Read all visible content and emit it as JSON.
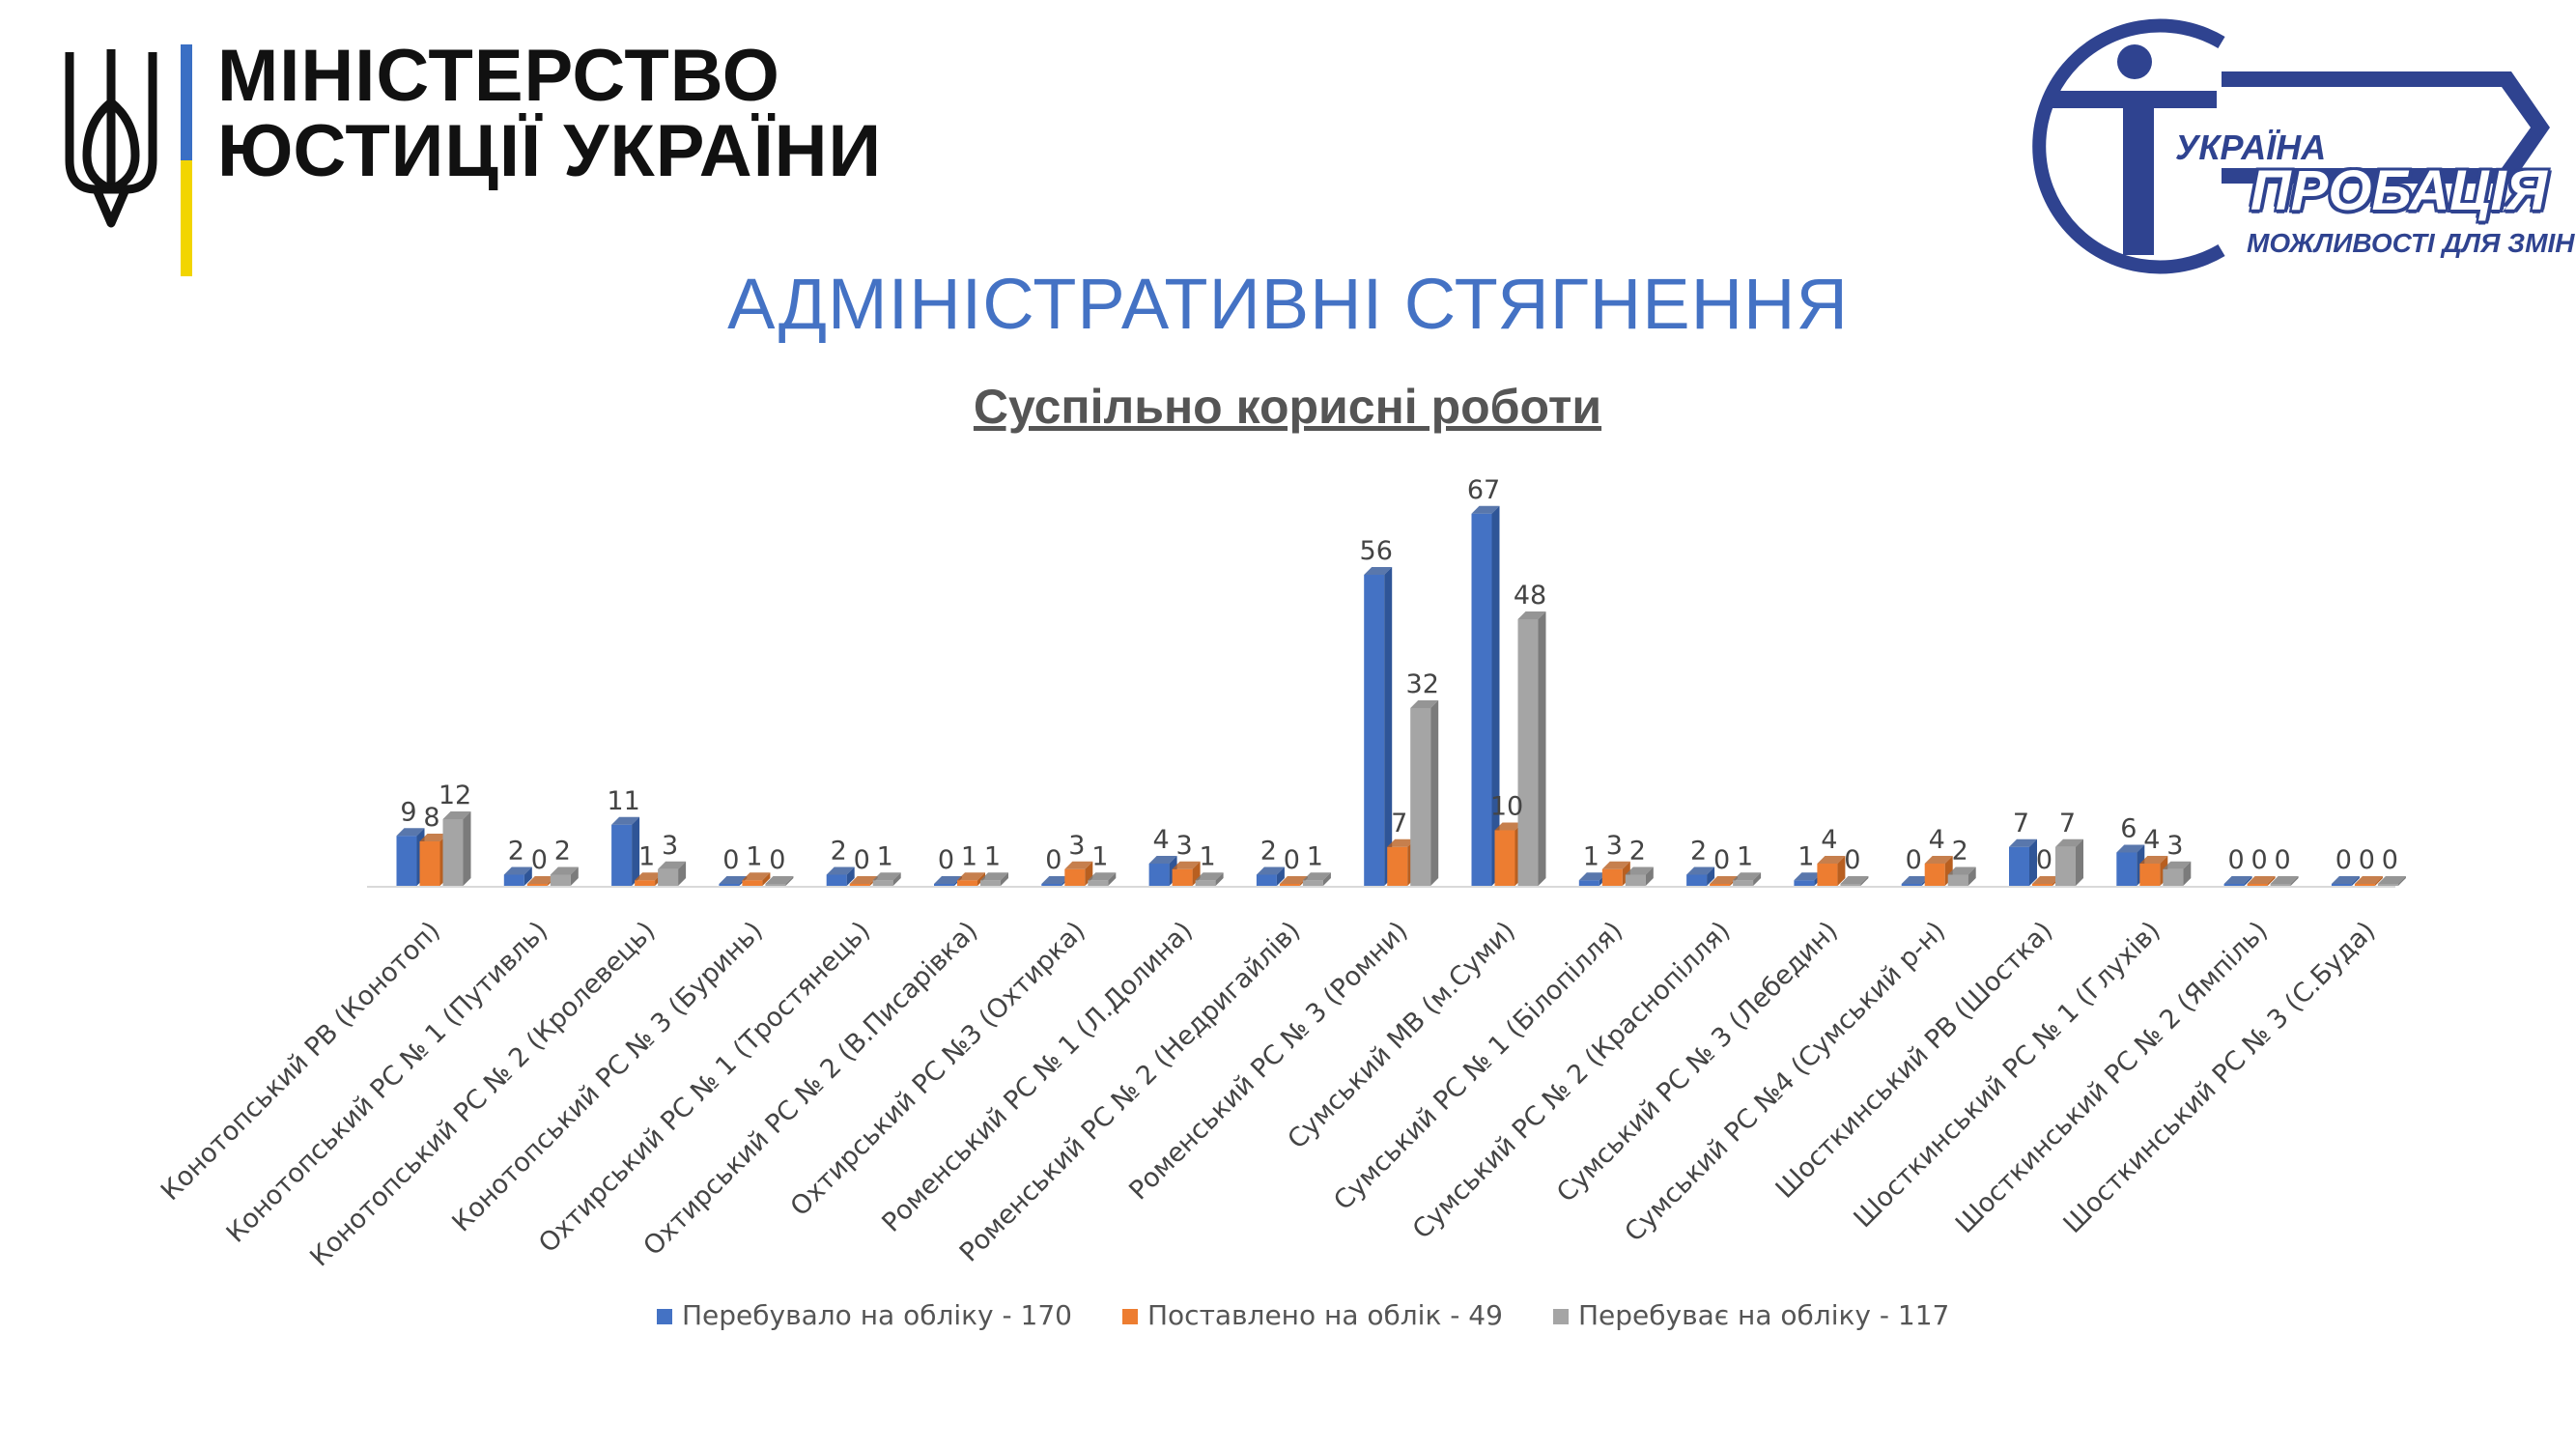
{
  "header": {
    "ministry_line1": "МІНІСТЕРСТВО",
    "ministry_line2": "ЮСТИЦІЇ УКРАЇНИ"
  },
  "logo": {
    "line1": "УКРАЇНА",
    "line2": "ПРОБАЦІЯ",
    "line3": "МОЖЛИВОСТІ ДЛЯ ЗМІН"
  },
  "page_title": "АДМІНІСТРАТИВНІ СТЯГНЕННЯ",
  "colors": {
    "title": "#4472c4",
    "series1": "#4472c4",
    "series2": "#ed7d31",
    "series3": "#a5a5a5",
    "brand": "#2f4390",
    "flag_blue": "#3a6fc4",
    "flag_yellow": "#f2d500"
  },
  "chart_data": {
    "type": "bar",
    "title": "Суспільно корисні роботи",
    "xlabel": "",
    "ylabel": "",
    "ylim": [
      0,
      70
    ],
    "grid": false,
    "legend_position": "bottom",
    "categories": [
      "Конотопський РВ (Конотоп)",
      "Конотопський РС № 1 (Путивль)",
      "Конотопський РС № 2 (Кролевець)",
      "Конотопський РС № 3 (Буринь)",
      "Охтирський РС № 1 (Тростянець)",
      "Охтирський РС № 2 (В.Писарівка)",
      "Охтирський РС №3 (Охтирка)",
      "Роменський РС № 1 (Л.Долина)",
      "Роменський РС № 2 (Недригайлів)",
      "Роменський РС № 3 (Ромни)",
      "Сумський МВ (м.Суми)",
      "Сумський РС № 1 (Білопілля)",
      "Сумський РС № 2 (Краснопілля)",
      "Сумський РС № 3 (Лебедин)",
      "Сумський РС №4 (Сумський р-н)",
      "Шосткинський РВ (Шостка)",
      "Шосткинський РС № 1 (Глухів)",
      "Шосткинський РС № 2 (Ямпіль)",
      "Шосткинський РС № 3 (С.Буда)"
    ],
    "series": [
      {
        "name": "Перебувало на обліку - 170",
        "values": [
          9,
          2,
          11,
          0,
          2,
          0,
          0,
          4,
          2,
          56,
          67,
          1,
          2,
          1,
          0,
          7,
          6,
          0,
          0
        ]
      },
      {
        "name": "Поставлено на облік - 49",
        "values": [
          8,
          0,
          1,
          1,
          0,
          1,
          3,
          3,
          0,
          7,
          10,
          3,
          0,
          4,
          4,
          0,
          4,
          0,
          0
        ]
      },
      {
        "name": "Перебуває на обліку - 117",
        "values": [
          12,
          2,
          3,
          0,
          1,
          1,
          1,
          1,
          1,
          32,
          48,
          2,
          1,
          0,
          2,
          7,
          3,
          0,
          0
        ]
      }
    ]
  }
}
